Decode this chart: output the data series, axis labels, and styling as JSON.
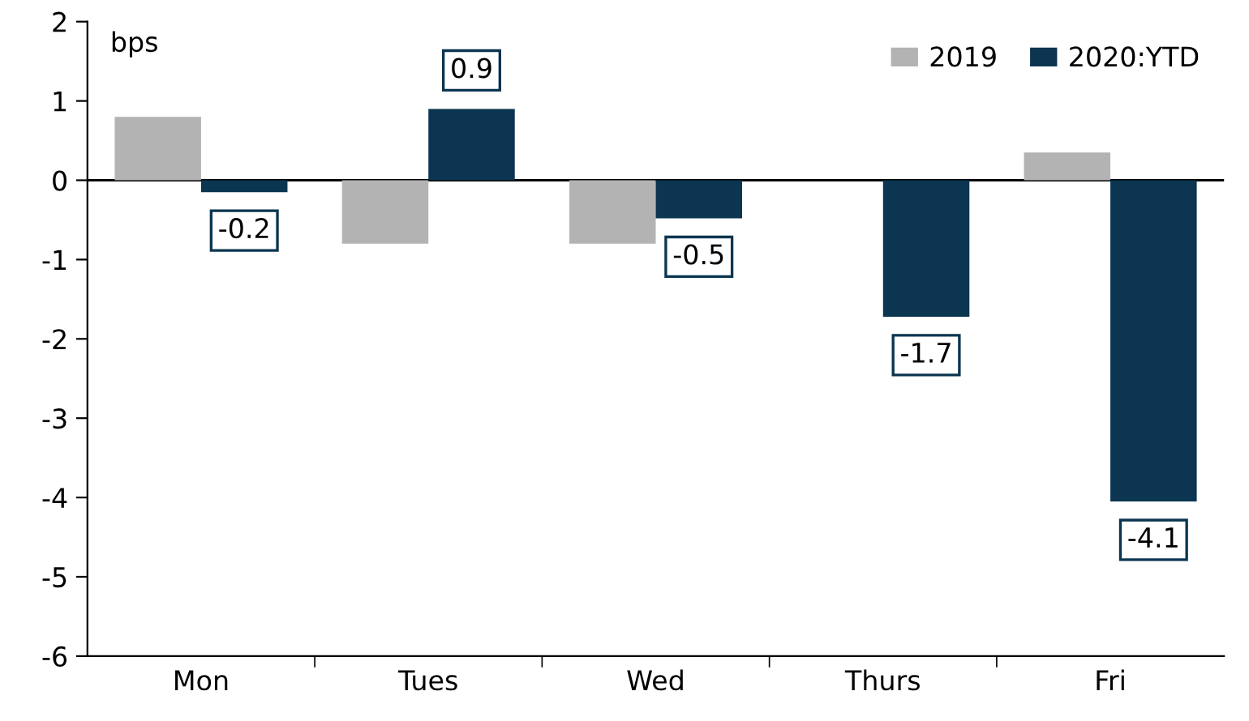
{
  "chart_data": {
    "type": "bar",
    "ylabel": "bps",
    "categories": [
      "Mon",
      "Tues",
      "Wed",
      "Thurs",
      "Fri"
    ],
    "series": [
      {
        "name": "2019",
        "color": "#b3b3b3",
        "values": [
          0.8,
          -0.8,
          -0.8,
          0,
          0.35
        ]
      },
      {
        "name": "2020:YTD",
        "color": "#0b3550",
        "values": [
          -0.15,
          0.9,
          -0.48,
          -1.72,
          -4.05
        ],
        "value_labels": [
          "-0.2",
          "0.9",
          "-0.5",
          "-1.7",
          "-4.1"
        ]
      }
    ],
    "ylim": [
      -6,
      2
    ],
    "yticks": [
      -6,
      -5,
      -4,
      -3,
      -2,
      -1,
      0,
      1,
      2
    ],
    "grid": false,
    "legend": "top right",
    "ref_lines": [
      {
        "axis": "y",
        "value": 0,
        "color": "#000000"
      }
    ]
  }
}
